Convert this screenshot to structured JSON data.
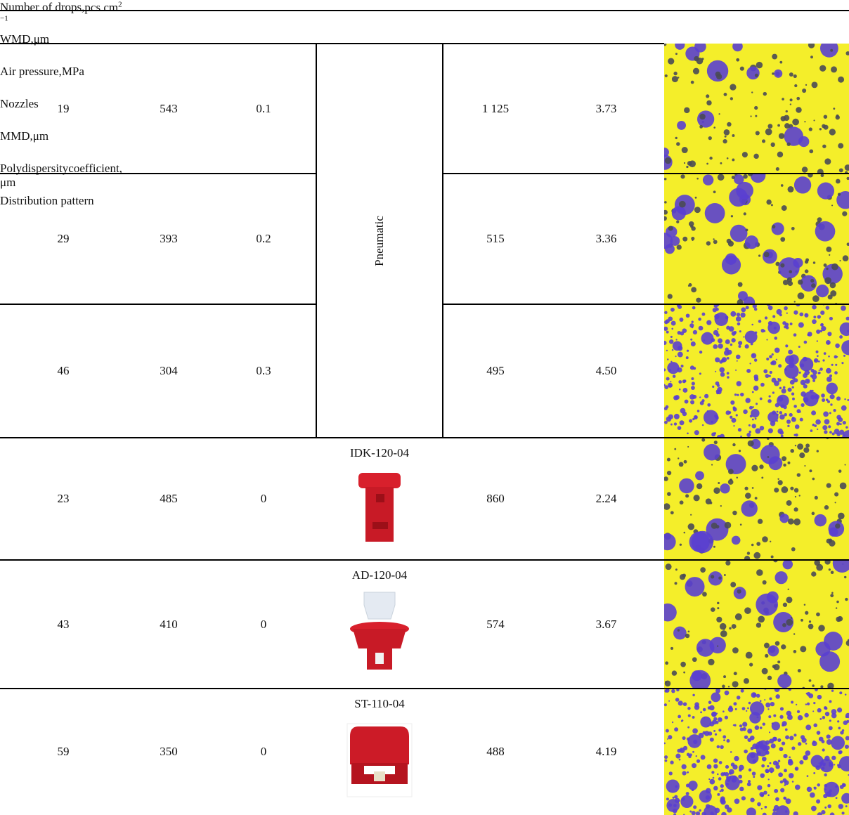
{
  "table": {
    "columns": [
      [
        "Number of drops,",
        "pcs cm",
        "2 −1"
      ],
      [
        "WMD,",
        "μm"
      ],
      [
        "Air pressure,",
        "MPa"
      ],
      [
        "Nozzles"
      ],
      [
        "MMD,",
        "μm"
      ],
      [
        "Polydispersity",
        "coefficient, μm"
      ],
      [
        "Distribution pattern"
      ]
    ],
    "rows": [
      {
        "drops": "19",
        "wmd": "543",
        "pressure": "0.1",
        "nozzle": "Pneumatic",
        "mmd": "1 125",
        "poly": "3.73"
      },
      {
        "drops": "29",
        "wmd": "393",
        "pressure": "0.2",
        "mmd": "515",
        "poly": "3.36"
      },
      {
        "drops": "46",
        "wmd": "304",
        "pressure": "0.3",
        "mmd": "495",
        "poly": "4.50"
      },
      {
        "drops": "23",
        "wmd": "485",
        "pressure": "0",
        "nozzle": "IDK-120-04",
        "mmd": "860",
        "poly": "2.24"
      },
      {
        "drops": "43",
        "wmd": "410",
        "pressure": "0",
        "nozzle": "AD-120-04",
        "mmd": "574",
        "poly": "3.67"
      },
      {
        "drops": "59",
        "wmd": "350",
        "pressure": "0",
        "nozzle": "ST-110-04",
        "mmd": "488",
        "poly": "4.19"
      }
    ]
  }
}
